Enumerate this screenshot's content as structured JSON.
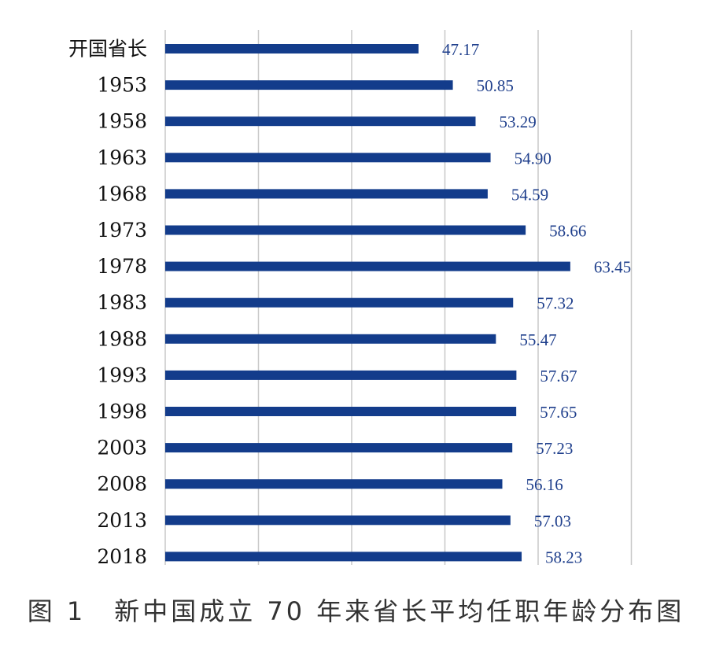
{
  "chart_data": {
    "type": "bar",
    "orientation": "horizontal",
    "categories": [
      "开国省长",
      "1953",
      "1958",
      "1963",
      "1968",
      "1973",
      "1978",
      "1983",
      "1988",
      "1993",
      "1998",
      "2003",
      "2008",
      "2013",
      "2018"
    ],
    "values": [
      47.17,
      50.85,
      53.29,
      54.9,
      54.59,
      58.66,
      63.45,
      57.32,
      55.47,
      57.67,
      57.65,
      57.23,
      56.16,
      57.03,
      58.23
    ],
    "value_labels": [
      "47.17",
      "50.85",
      "53.29",
      "54.90",
      "54.59",
      "58.66",
      "63.45",
      "57.32",
      "55.47",
      "57.67",
      "57.65",
      "57.23",
      "56.16",
      "57.03",
      "58.23"
    ],
    "xlim": [
      20,
      70
    ],
    "grid": true,
    "legend": "none",
    "title": "",
    "xlabel": "",
    "ylabel": ""
  },
  "colors": {
    "bar": "#133c8b",
    "value_label": "#1f3f8c",
    "category_label": "#111111",
    "grid": "#c8c8c8"
  },
  "caption": "图 1　新中国成立 70 年来省长平均任职年龄分布图"
}
